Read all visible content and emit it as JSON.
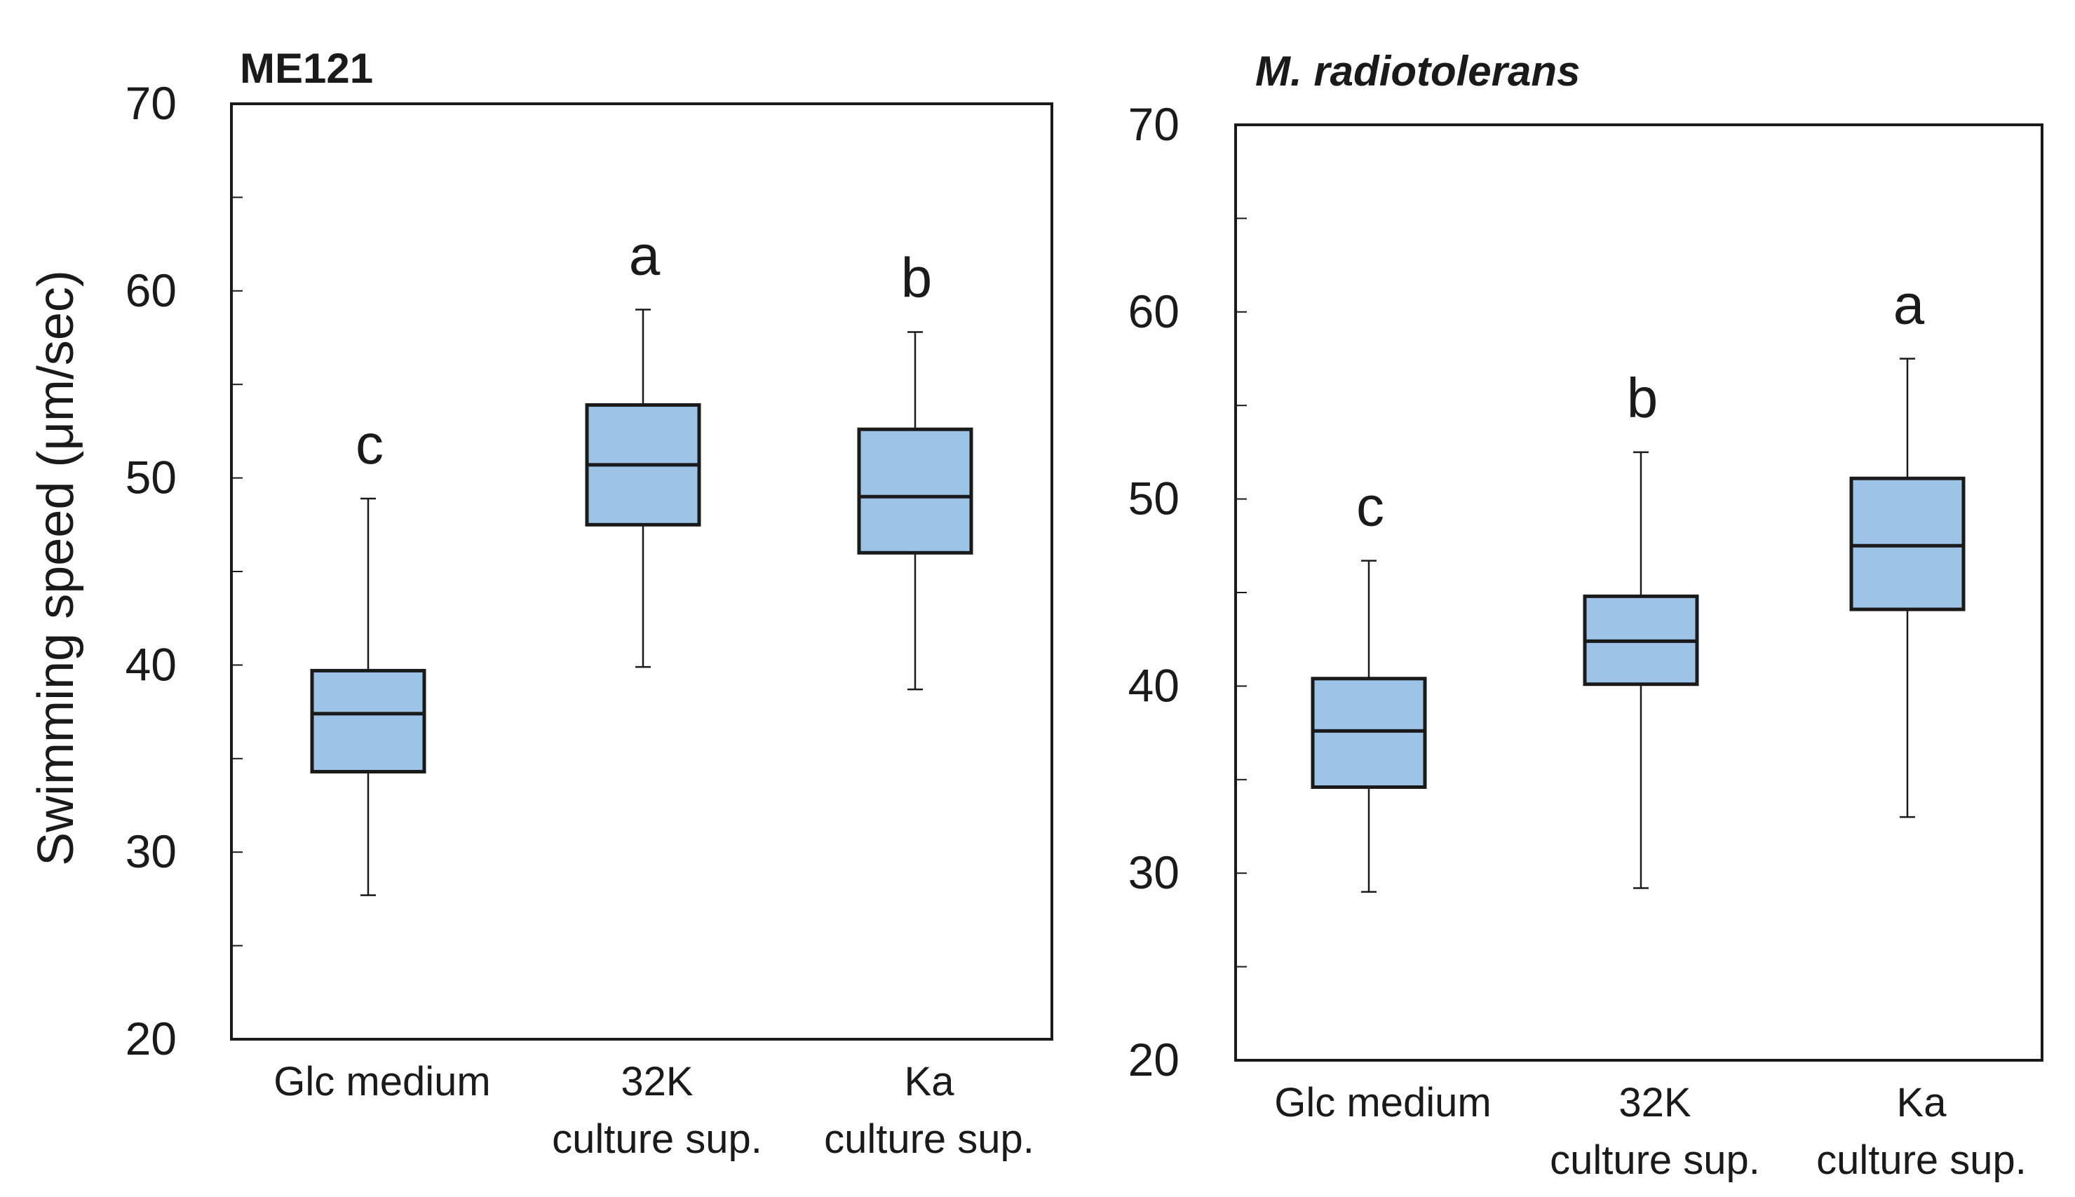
{
  "figure": {
    "ylabel": "Swimming speed (μm/sec)"
  },
  "chart_data": [
    {
      "type": "box",
      "title": "ME121",
      "title_style": "bold",
      "ylabel": "Swimming speed (μm/sec)",
      "ylim": [
        20,
        70
      ],
      "yticks": [
        20,
        30,
        40,
        50,
        60,
        70
      ],
      "categories": [
        {
          "line1": "Glc medium",
          "line2": ""
        },
        {
          "line1": "32K",
          "line2": "culture sup."
        },
        {
          "line1": "Ka",
          "line2": "culture sup."
        }
      ],
      "boxes": [
        {
          "min": 27.7,
          "q1": 34.3,
          "median": 37.4,
          "q3": 39.7,
          "max": 48.9,
          "letter": "c"
        },
        {
          "min": 39.9,
          "q1": 47.5,
          "median": 50.7,
          "q3": 53.9,
          "max": 59.0,
          "letter": "a"
        },
        {
          "min": 38.7,
          "q1": 46.0,
          "median": 49.0,
          "q3": 52.6,
          "max": 57.8,
          "letter": "b"
        }
      ]
    },
    {
      "type": "box",
      "title": "M. radiotolerans",
      "title_style": "bold-italic",
      "ylabel": "",
      "ylim": [
        20,
        70
      ],
      "yticks": [
        20,
        30,
        40,
        50,
        60,
        70
      ],
      "categories": [
        {
          "line1": "Glc medium",
          "line2": ""
        },
        {
          "line1": "32K",
          "line2": "culture sup."
        },
        {
          "line1": "Ka",
          "line2": "culture sup."
        }
      ],
      "boxes": [
        {
          "min": 29.0,
          "q1": 34.6,
          "median": 37.6,
          "q3": 40.4,
          "max": 46.7,
          "letter": "c"
        },
        {
          "min": 29.2,
          "q1": 40.1,
          "median": 42.4,
          "q3": 44.8,
          "max": 52.5,
          "letter": "b"
        },
        {
          "min": 33.0,
          "q1": 44.1,
          "median": 47.5,
          "q3": 51.1,
          "max": 57.5,
          "letter": "a"
        }
      ]
    }
  ]
}
